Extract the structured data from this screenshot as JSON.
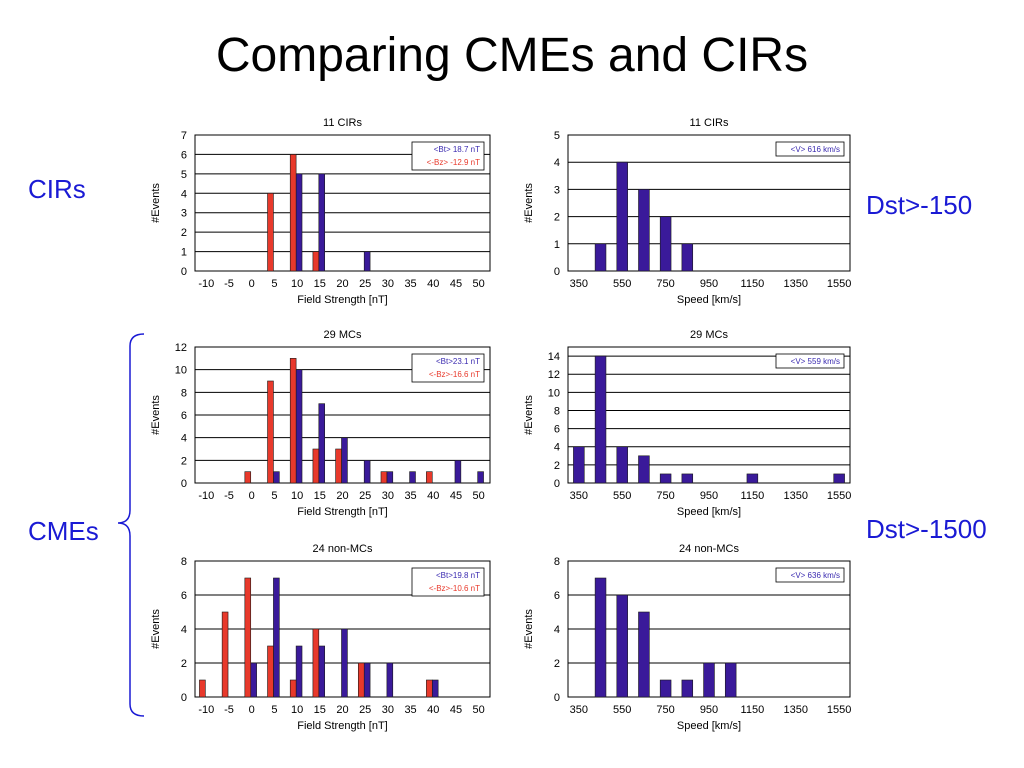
{
  "slide": {
    "title": "Comparing CMEs and CIRs",
    "labels": {
      "cirs": "CIRs",
      "cmes": "CMEs",
      "dst150": "Dst>-150",
      "dst1500": "Dst>-1500"
    }
  },
  "colors": {
    "bt": "#3a1a9a",
    "bz": "#e8392b",
    "label_blue": "#1a1ad4",
    "bt_text": "#3a2ab0",
    "bz_text": "#e8392b"
  },
  "chart_data": [
    {
      "type": "bar",
      "title": "11 CIRs",
      "xlabel": "Field Strength [nT]",
      "ylabel": "#Events",
      "ylim": [
        0,
        7
      ],
      "yticks": [
        "0",
        "1",
        "2",
        "3",
        "4",
        "5",
        "6",
        "7"
      ],
      "categories": [
        "-10",
        "-5",
        "0",
        "5",
        "10",
        "15",
        "20",
        "25",
        "30",
        "35",
        "40",
        "45",
        "50"
      ],
      "series": [
        {
          "name": "<Bt>",
          "color": "#3a1a9a",
          "values": [
            0,
            0,
            0,
            0,
            5,
            5,
            0,
            1,
            0,
            0,
            0,
            0,
            0
          ]
        },
        {
          "name": "<-Bz>",
          "color": "#e8392b",
          "values": [
            0,
            0,
            0,
            4,
            6,
            1,
            0,
            0,
            0,
            0,
            0,
            0,
            0
          ]
        }
      ],
      "legend": [
        "<Bt> 18.7 nT",
        "<-Bz> -12.9 nT"
      ]
    },
    {
      "type": "bar",
      "title": "11 CIRs",
      "xlabel": "Speed [km/s]",
      "ylabel": "#Events",
      "ylim": [
        0,
        5
      ],
      "yticks": [
        "0",
        "1",
        "2",
        "3",
        "4",
        "5"
      ],
      "categories": [
        "350",
        "450",
        "550",
        "650",
        "750",
        "850",
        "950",
        "1050",
        "1150",
        "1250",
        "1350",
        "1450",
        "1550"
      ],
      "ticklabels": [
        "350",
        "",
        "550",
        "",
        "750",
        "",
        "950",
        "",
        "1150",
        "",
        "1350",
        "",
        "1550"
      ],
      "series": [
        {
          "name": "<V>",
          "color": "#3a1a9a",
          "values": [
            0,
            1,
            4,
            3,
            2,
            1,
            0,
            0,
            0,
            0,
            0,
            0,
            0
          ]
        }
      ],
      "legend": [
        "<V> 616 km/s"
      ]
    },
    {
      "type": "bar",
      "title": "29 MCs",
      "xlabel": "Field Strength [nT]",
      "ylabel": "#Events",
      "ylim": [
        0,
        12
      ],
      "yticks": [
        "0",
        "2",
        "4",
        "6",
        "8",
        "10",
        "12"
      ],
      "categories": [
        "-10",
        "-5",
        "0",
        "5",
        "10",
        "15",
        "20",
        "25",
        "30",
        "35",
        "40",
        "45",
        "50"
      ],
      "series": [
        {
          "name": "<Bt>",
          "color": "#3a1a9a",
          "values": [
            0,
            0,
            0,
            1,
            10,
            7,
            4,
            2,
            1,
            1,
            0,
            2,
            1
          ]
        },
        {
          "name": "<-Bz>",
          "color": "#e8392b",
          "values": [
            0,
            0,
            1,
            9,
            11,
            3,
            3,
            0,
            1,
            0,
            1,
            0,
            0
          ]
        }
      ],
      "legend": [
        "<Bt>23.1 nT",
        "<-Bz>-16.6 nT"
      ]
    },
    {
      "type": "bar",
      "title": "29 MCs",
      "xlabel": "Speed [km/s]",
      "ylabel": "#Events",
      "ylim": [
        0,
        15
      ],
      "yticks": [
        "0",
        "2",
        "4",
        "6",
        "8",
        "10",
        "12",
        "14"
      ],
      "categories": [
        "350",
        "450",
        "550",
        "650",
        "750",
        "850",
        "950",
        "1050",
        "1150",
        "1250",
        "1350",
        "1450",
        "1550"
      ],
      "ticklabels": [
        "350",
        "",
        "550",
        "",
        "750",
        "",
        "950",
        "",
        "1150",
        "",
        "1350",
        "",
        "1550"
      ],
      "series": [
        {
          "name": "<V>",
          "color": "#3a1a9a",
          "values": [
            4,
            14,
            4,
            3,
            1,
            1,
            0,
            0,
            1,
            0,
            0,
            0,
            1
          ]
        }
      ],
      "legend": [
        "<V> 559 km/s"
      ]
    },
    {
      "type": "bar",
      "title": "24 non-MCs",
      "xlabel": "Field Strength [nT]",
      "ylabel": "#Events",
      "ylim": [
        0,
        8
      ],
      "yticks": [
        "0",
        "2",
        "4",
        "6",
        "8"
      ],
      "categories": [
        "-10",
        "-5",
        "0",
        "5",
        "10",
        "15",
        "20",
        "25",
        "30",
        "35",
        "40",
        "45",
        "50"
      ],
      "series": [
        {
          "name": "<Bt>",
          "color": "#3a1a9a",
          "values": [
            0,
            0,
            2,
            7,
            3,
            3,
            4,
            2,
            2,
            0,
            1,
            0,
            0
          ]
        },
        {
          "name": "<-Bz>",
          "color": "#e8392b",
          "values": [
            1,
            5,
            7,
            3,
            1,
            4,
            0,
            2,
            0,
            0,
            1,
            0,
            0
          ]
        }
      ],
      "legend": [
        "<Bt>19.8 nT",
        "<-Bz>-10.6 nT"
      ]
    },
    {
      "type": "bar",
      "title": "24 non-MCs",
      "xlabel": "Speed [km/s]",
      "ylabel": "#Events",
      "ylim": [
        0,
        8
      ],
      "yticks": [
        "0",
        "2",
        "4",
        "6",
        "8"
      ],
      "categories": [
        "350",
        "450",
        "550",
        "650",
        "750",
        "850",
        "950",
        "1050",
        "1150",
        "1250",
        "1350",
        "1450",
        "1550"
      ],
      "ticklabels": [
        "350",
        "",
        "550",
        "",
        "750",
        "",
        "950",
        "",
        "1150",
        "",
        "1350",
        "",
        "1550"
      ],
      "series": [
        {
          "name": "<V>",
          "color": "#3a1a9a",
          "values": [
            0,
            7,
            6,
            5,
            1,
            1,
            2,
            2,
            0,
            0,
            0,
            0,
            0
          ]
        }
      ],
      "legend": [
        "<V> 636 km/s"
      ]
    }
  ]
}
